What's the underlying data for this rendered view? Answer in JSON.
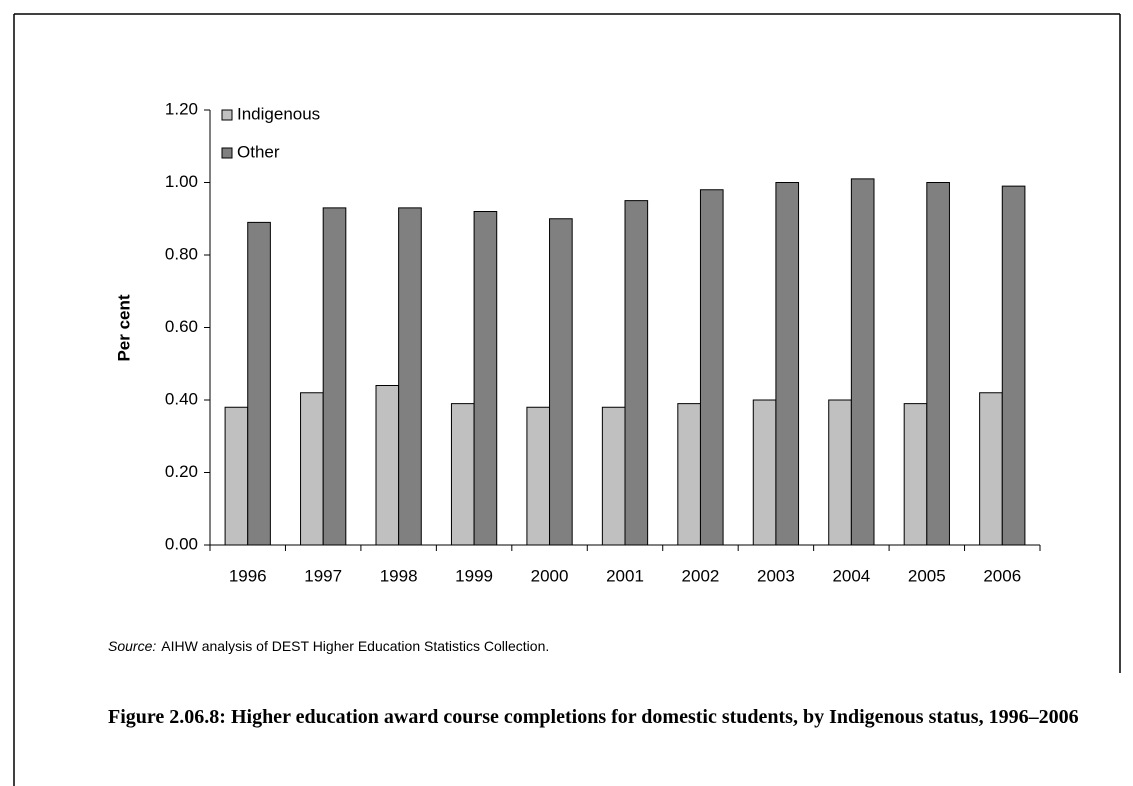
{
  "chart_data": {
    "type": "bar",
    "y_label": "Per cent",
    "categories": [
      "1996",
      "1997",
      "1998",
      "1999",
      "2000",
      "2001",
      "2002",
      "2003",
      "2004",
      "2005",
      "2006"
    ],
    "series": [
      {
        "name": "Indigenous",
        "color": "#c0c0c0",
        "values": [
          0.38,
          0.42,
          0.44,
          0.39,
          0.38,
          0.38,
          0.39,
          0.4,
          0.4,
          0.39,
          0.42
        ]
      },
      {
        "name": "Other",
        "color": "#808080",
        "values": [
          0.89,
          0.93,
          0.93,
          0.92,
          0.9,
          0.95,
          0.98,
          1.0,
          1.01,
          1.0,
          0.99
        ]
      }
    ],
    "ylim": [
      0,
      1.2
    ],
    "yticks": [
      {
        "value": 0,
        "label": "0.00"
      },
      {
        "value": 0.2,
        "label": "0.20"
      },
      {
        "value": 0.4,
        "label": "0.40"
      },
      {
        "value": 0.6,
        "label": "0.60"
      },
      {
        "value": 0.8,
        "label": "0.80"
      },
      {
        "value": 1,
        "label": "1.00"
      },
      {
        "value": 1.2,
        "label": "1.20"
      }
    ],
    "grid": false,
    "legend": "top-left",
    "source_label": "Source:",
    "source": "AIHW analysis of DEST Higher Education Statistics Collection.",
    "title": "Figure 2.06.8: Higher education award course completions for domestic students, by Indigenous status, 1996–2006"
  }
}
